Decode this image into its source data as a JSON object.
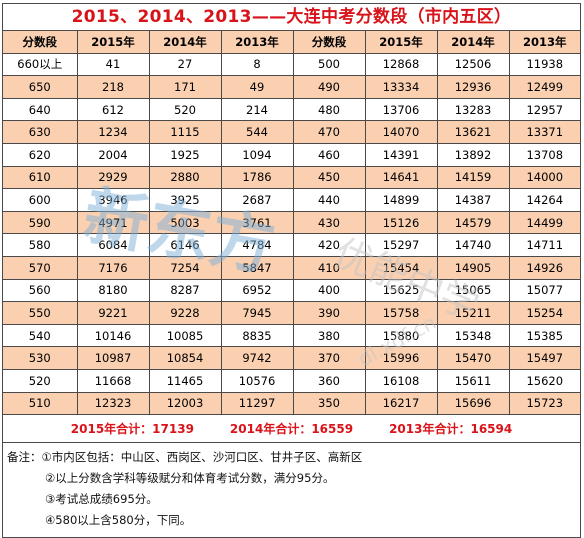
{
  "title": "2015、2014、2013——大连中考分数段（市内五区）",
  "headers": [
    "分数段",
    "2015年",
    "2014年",
    "2013年",
    "分数段",
    "2015年",
    "2014年",
    "2013年"
  ],
  "rows": [
    [
      "660以上",
      "41",
      "27",
      "8",
      "500",
      "12868",
      "12506",
      "11938"
    ],
    [
      "650",
      "218",
      "171",
      "49",
      "490",
      "13334",
      "12936",
      "12499"
    ],
    [
      "640",
      "612",
      "520",
      "214",
      "480",
      "13706",
      "13283",
      "12957"
    ],
    [
      "630",
      "1234",
      "1115",
      "544",
      "470",
      "14070",
      "13621",
      "13371"
    ],
    [
      "620",
      "2004",
      "1925",
      "1094",
      "460",
      "14391",
      "13892",
      "13708"
    ],
    [
      "610",
      "2929",
      "2880",
      "1786",
      "450",
      "14641",
      "14159",
      "14000"
    ],
    [
      "600",
      "3946",
      "3925",
      "2687",
      "440",
      "14899",
      "14387",
      "14264"
    ],
    [
      "590",
      "4971",
      "5003",
      "3761",
      "430",
      "15126",
      "14579",
      "14499"
    ],
    [
      "580",
      "6084",
      "6146",
      "4784",
      "420",
      "15297",
      "14740",
      "14711"
    ],
    [
      "570",
      "7176",
      "7254",
      "5847",
      "410",
      "15454",
      "14905",
      "14926"
    ],
    [
      "560",
      "8180",
      "8287",
      "6952",
      "400",
      "15625",
      "15065",
      "15077"
    ],
    [
      "550",
      "9221",
      "9228",
      "7945",
      "390",
      "15758",
      "15211",
      "15254"
    ],
    [
      "540",
      "10146",
      "10085",
      "8835",
      "380",
      "15880",
      "15348",
      "15385"
    ],
    [
      "530",
      "10987",
      "10854",
      "9742",
      "370",
      "15996",
      "15470",
      "15497"
    ],
    [
      "520",
      "11668",
      "11465",
      "10576",
      "360",
      "16108",
      "15611",
      "15620"
    ],
    [
      "510",
      "12323",
      "12003",
      "11297",
      "350",
      "16217",
      "15696",
      "15723"
    ]
  ],
  "totals": [
    "2015年合计：17139",
    "2014年合计：16559",
    "2013年合计：16594"
  ],
  "notes": [
    "备注：①市内区包括：中山区、西岗区、沙河口区、甘井子区、高新区",
    "②以上分数含学科等级赋分和体育考试分数，满分95分。",
    "③考试总成绩695分。",
    "④580以上含580分，下同。"
  ],
  "watermark": {
    "text": "新东方优能中学",
    "url": "dl.xdf.cn"
  },
  "colors": {
    "title": "#d8141a",
    "band": "#fad0b0",
    "border": "#4a4a4a"
  }
}
